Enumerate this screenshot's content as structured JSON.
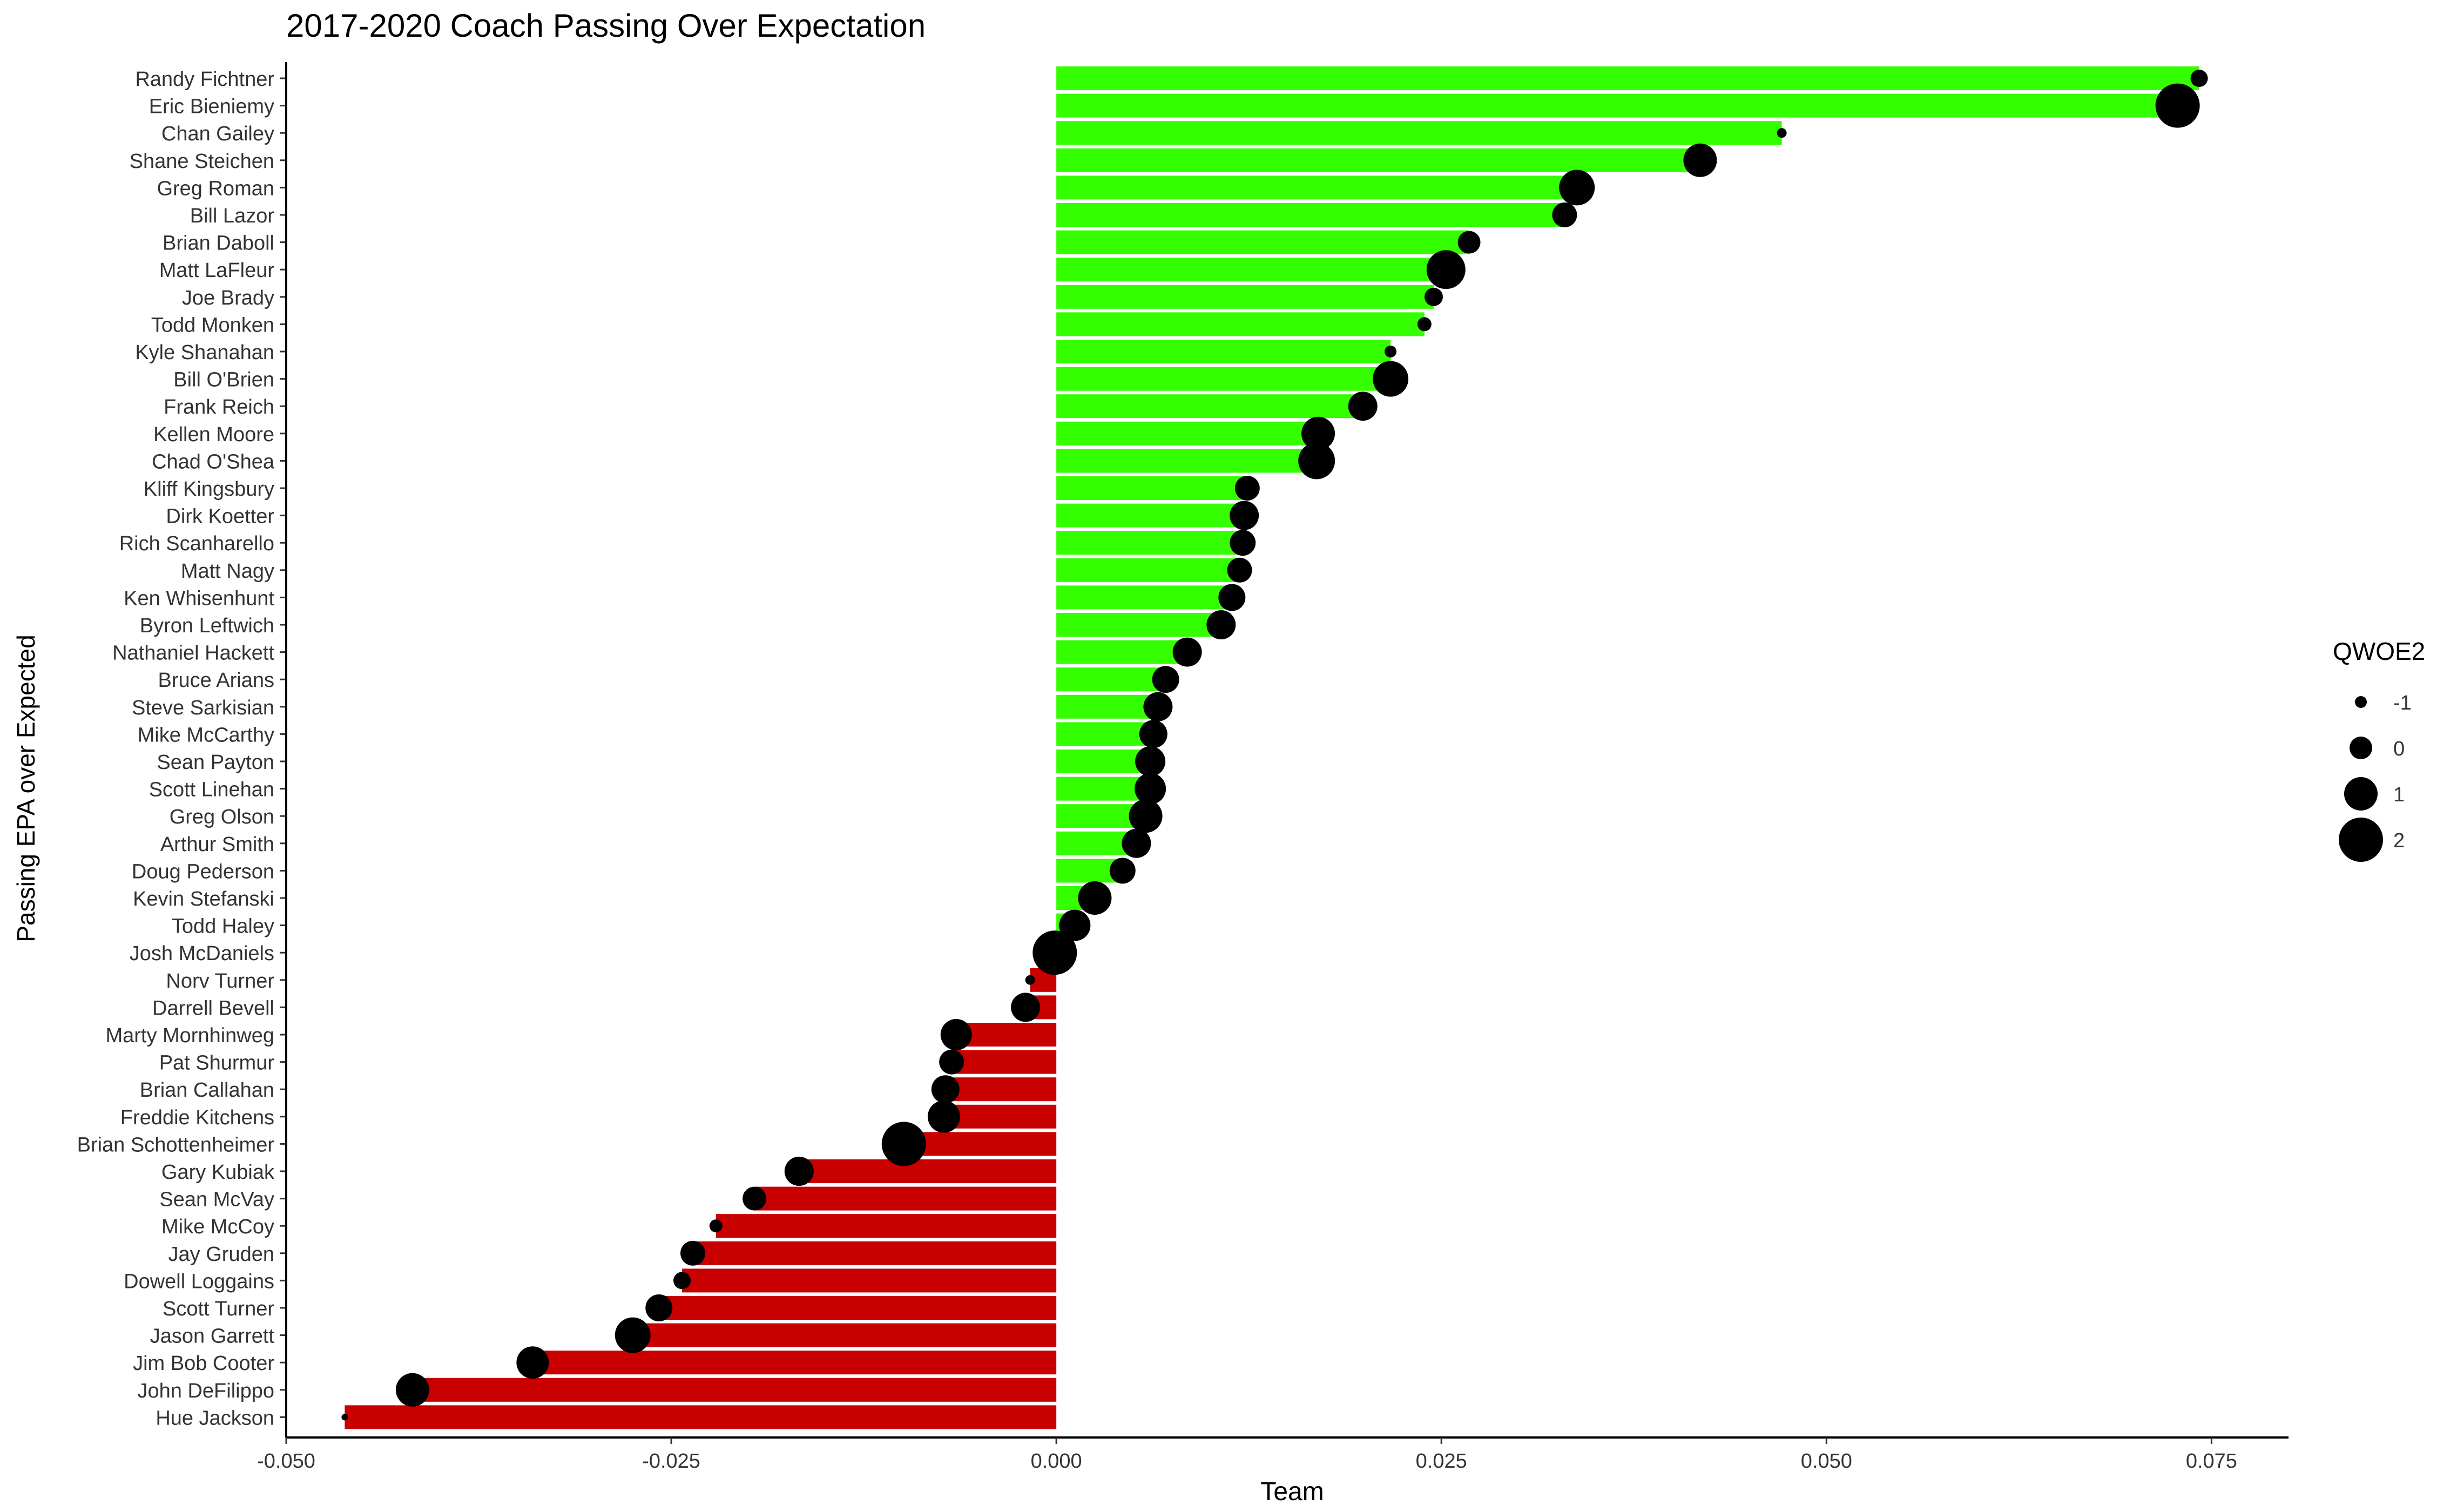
{
  "chart_data": {
    "type": "bar",
    "orientation": "horizontal",
    "title": "2017-2020 Coach Passing Over Expectation",
    "xlabel": "Team",
    "ylabel": "Passing EPA over Expected",
    "xlim": [
      -0.05,
      0.08
    ],
    "x_ticks": [
      -0.05,
      -0.025,
      0,
      0.025,
      0.05,
      0.075
    ],
    "x_tick_labels": [
      "-0.050",
      "-0.025",
      "0.000",
      "0.025",
      "0.050",
      "0.075"
    ],
    "grid": false,
    "positive_color": "#33ff00",
    "negative_color": "#c80000",
    "point_color": "#000000",
    "legend": {
      "title": "QWOE2",
      "position": "right",
      "entries": [
        {
          "label": "-1",
          "value": -1
        },
        {
          "label": "0",
          "value": 0
        },
        {
          "label": "1",
          "value": 1
        },
        {
          "label": "2",
          "value": 2
        }
      ]
    },
    "coaches": [
      {
        "name": "Randy Fichtner",
        "value": 0.0742,
        "qwoe2": -0.5
      },
      {
        "name": "Eric Bieniemy",
        "value": 0.0728,
        "qwoe2": 2.0
      },
      {
        "name": "Chan Gailey",
        "value": 0.0471,
        "qwoe2": -1.2
      },
      {
        "name": "Shane Steichen",
        "value": 0.0418,
        "qwoe2": 1.0
      },
      {
        "name": "Greg Roman",
        "value": 0.0338,
        "qwoe2": 1.2
      },
      {
        "name": "Bill Lazor",
        "value": 0.033,
        "qwoe2": 0.2
      },
      {
        "name": "Brian Daboll",
        "value": 0.0268,
        "qwoe2": 0.0
      },
      {
        "name": "Matt LaFleur",
        "value": 0.0253,
        "qwoe2": 1.5
      },
      {
        "name": "Joe Brady",
        "value": 0.0245,
        "qwoe2": -0.4
      },
      {
        "name": "Todd Monken",
        "value": 0.0239,
        "qwoe2": -0.8
      },
      {
        "name": "Kyle Shanahan",
        "value": 0.0217,
        "qwoe2": -1.0
      },
      {
        "name": "Bill O'Brien",
        "value": 0.0217,
        "qwoe2": 1.2
      },
      {
        "name": "Frank Reich",
        "value": 0.0199,
        "qwoe2": 0.6
      },
      {
        "name": "Kellen Moore",
        "value": 0.017,
        "qwoe2": 1.0
      },
      {
        "name": "Chad O'Shea",
        "value": 0.0169,
        "qwoe2": 1.3
      },
      {
        "name": "Kliff Kingsbury",
        "value": 0.0124,
        "qwoe2": 0.2
      },
      {
        "name": "Dirk Koetter",
        "value": 0.0122,
        "qwoe2": 0.6
      },
      {
        "name": "Rich Scanharello",
        "value": 0.0121,
        "qwoe2": 0.3
      },
      {
        "name": "Matt Nagy",
        "value": 0.0119,
        "qwoe2": 0.2
      },
      {
        "name": "Ken Whisenhunt",
        "value": 0.0114,
        "qwoe2": 0.4
      },
      {
        "name": "Byron Leftwich",
        "value": 0.0107,
        "qwoe2": 0.6
      },
      {
        "name": "Nathaniel Hackett",
        "value": 0.0085,
        "qwoe2": 0.6
      },
      {
        "name": "Bruce Arians",
        "value": 0.0071,
        "qwoe2": 0.4
      },
      {
        "name": "Steve Sarkisian",
        "value": 0.0066,
        "qwoe2": 0.6
      },
      {
        "name": "Mike McCarthy",
        "value": 0.0063,
        "qwoe2": 0.5
      },
      {
        "name": "Sean Payton",
        "value": 0.0061,
        "qwoe2": 0.7
      },
      {
        "name": "Scott Linehan",
        "value": 0.0061,
        "qwoe2": 0.8
      },
      {
        "name": "Greg Olson",
        "value": 0.0058,
        "qwoe2": 1.0
      },
      {
        "name": "Arthur Smith",
        "value": 0.0052,
        "qwoe2": 0.6
      },
      {
        "name": "Doug Pederson",
        "value": 0.0043,
        "qwoe2": 0.3
      },
      {
        "name": "Kevin Stefanski",
        "value": 0.0025,
        "qwoe2": 1.0
      },
      {
        "name": "Todd Haley",
        "value": 0.0012,
        "qwoe2": 0.8
      },
      {
        "name": "Josh McDaniels",
        "value": -0.0001,
        "qwoe2": 2.0
      },
      {
        "name": "Norv Turner",
        "value": -0.0017,
        "qwoe2": -1.2
      },
      {
        "name": "Darrell Bevell",
        "value": -0.002,
        "qwoe2": 0.6
      },
      {
        "name": "Marty Mornhinweg",
        "value": -0.0065,
        "qwoe2": 0.8
      },
      {
        "name": "Pat Shurmur",
        "value": -0.0068,
        "qwoe2": 0.2
      },
      {
        "name": "Brian Callahan",
        "value": -0.0072,
        "qwoe2": 0.5
      },
      {
        "name": "Freddie Kitchens",
        "value": -0.0073,
        "qwoe2": 0.9
      },
      {
        "name": "Brian Schottenheimer",
        "value": -0.0099,
        "qwoe2": 2.0
      },
      {
        "name": "Gary Kubiak",
        "value": -0.0167,
        "qwoe2": 0.6
      },
      {
        "name": "Sean McVay",
        "value": -0.0196,
        "qwoe2": 0.1
      },
      {
        "name": "Mike McCoy",
        "value": -0.0221,
        "qwoe2": -0.9
      },
      {
        "name": "Jay Gruden",
        "value": -0.0236,
        "qwoe2": 0.2
      },
      {
        "name": "Dowell Loggains",
        "value": -0.0243,
        "qwoe2": -0.5
      },
      {
        "name": "Scott Turner",
        "value": -0.0258,
        "qwoe2": 0.4
      },
      {
        "name": "Jason Garrett",
        "value": -0.0275,
        "qwoe2": 1.2
      },
      {
        "name": "Jim Bob Cooter",
        "value": -0.034,
        "qwoe2": 0.9
      },
      {
        "name": "John DeFilippo",
        "value": -0.0418,
        "qwoe2": 1.0
      },
      {
        "name": "Hue Jackson",
        "value": -0.0462,
        "qwoe2": -1.8
      }
    ]
  }
}
